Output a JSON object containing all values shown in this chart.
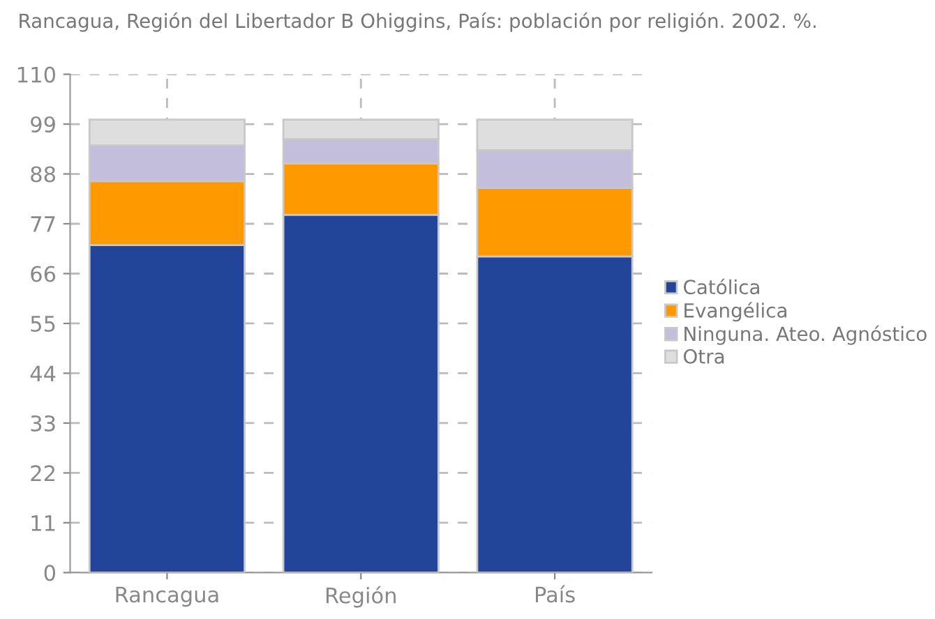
{
  "chart_data": {
    "type": "bar",
    "title": "Rancagua, Región del Libertador B Ohiggins, País: población por religión. 2002. %.",
    "categories": [
      "Rancagua",
      "Región",
      "País"
    ],
    "series": [
      {
        "name": "Católica",
        "color": "#224499",
        "values": [
          72.3,
          79.0,
          69.8
        ]
      },
      {
        "name": "Evangélica",
        "color": "#ff9900",
        "values": [
          14.1,
          11.3,
          15.1
        ]
      },
      {
        "name": "Ninguna. Ateo. Agnóstico",
        "color": "#c2bedc",
        "values": [
          7.9,
          5.4,
          8.3
        ]
      },
      {
        "name": "Otra",
        "color": "#dedede",
        "values": [
          5.7,
          4.3,
          6.8
        ]
      }
    ],
    "stacked": true,
    "ylim": [
      0,
      110
    ],
    "yticks": [
      0,
      11,
      22,
      33,
      44,
      55,
      66,
      77,
      88,
      99,
      110
    ],
    "grid": true,
    "legend": "right"
  }
}
